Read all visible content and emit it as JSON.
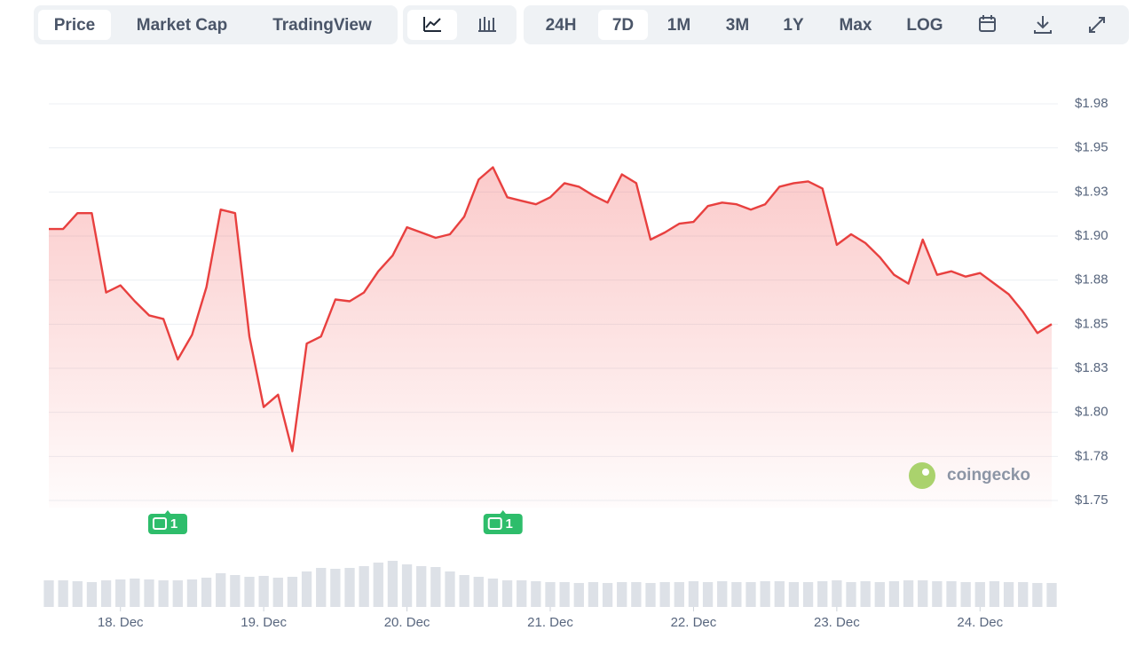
{
  "toolbar": {
    "views": [
      "Price",
      "Market Cap",
      "TradingView"
    ],
    "active_view": 0,
    "ranges": [
      "24H",
      "7D",
      "1M",
      "3M",
      "1Y",
      "Max",
      "LOG"
    ],
    "active_range": 1
  },
  "chart_data": {
    "type": "line",
    "color": "#e8403f",
    "grid": true,
    "watermark": "coingecko",
    "x": [
      17.5,
      17.6,
      17.7,
      17.8,
      17.9,
      18.0,
      18.1,
      18.2,
      18.3,
      18.4,
      18.5,
      18.6,
      18.7,
      18.8,
      18.9,
      19.0,
      19.1,
      19.2,
      19.3,
      19.4,
      19.5,
      19.6,
      19.7,
      19.8,
      19.9,
      20.0,
      20.1,
      20.2,
      20.3,
      20.4,
      20.5,
      20.6,
      20.7,
      20.8,
      20.9,
      21.0,
      21.1,
      21.2,
      21.3,
      21.4,
      21.5,
      21.6,
      21.7,
      21.8,
      21.9,
      22.0,
      22.1,
      22.2,
      22.3,
      22.4,
      22.5,
      22.6,
      22.7,
      22.8,
      22.9,
      23.0,
      23.1,
      23.2,
      23.3,
      23.4,
      23.5,
      23.6,
      23.7,
      23.8,
      23.9,
      24.0,
      24.1,
      24.2,
      24.3,
      24.4,
      24.5
    ],
    "values": [
      1.904,
      1.904,
      1.913,
      1.913,
      1.868,
      1.872,
      1.863,
      1.855,
      1.853,
      1.83,
      1.844,
      1.871,
      1.915,
      1.913,
      1.843,
      1.803,
      1.81,
      1.778,
      1.839,
      1.843,
      1.864,
      1.863,
      1.868,
      1.88,
      1.889,
      1.905,
      1.902,
      1.899,
      1.901,
      1.911,
      1.932,
      1.939,
      1.922,
      1.92,
      1.918,
      1.922,
      1.93,
      1.928,
      1.923,
      1.919,
      1.935,
      1.93,
      1.898,
      1.902,
      1.907,
      1.908,
      1.917,
      1.919,
      1.918,
      1.915,
      1.918,
      1.928,
      1.93,
      1.931,
      1.927,
      1.895,
      1.901,
      1.896,
      1.888,
      1.878,
      1.873,
      1.898,
      1.878,
      1.88,
      1.877,
      1.879,
      1.873,
      1.867,
      1.857,
      1.845,
      1.85
    ],
    "volume": [
      30,
      30,
      29,
      28,
      30,
      31,
      32,
      31,
      30,
      30,
      31,
      33,
      38,
      36,
      34,
      35,
      33,
      34,
      40,
      44,
      43,
      44,
      46,
      50,
      52,
      48,
      46,
      45,
      40,
      36,
      34,
      32,
      30,
      30,
      29,
      28,
      28,
      27,
      28,
      27,
      28,
      28,
      27,
      28,
      28,
      29,
      28,
      29,
      28,
      28,
      29,
      29,
      28,
      28,
      29,
      30,
      28,
      29,
      28,
      29,
      30,
      30,
      29,
      29,
      28,
      28,
      29,
      28,
      28,
      27,
      27
    ],
    "volume_lim": [
      0,
      60
    ],
    "xlim": [
      17.5,
      24.5
    ],
    "xticks": [
      {
        "value": 18,
        "label": "18. Dec"
      },
      {
        "value": 19,
        "label": "19. Dec"
      },
      {
        "value": 20,
        "label": "20. Dec"
      },
      {
        "value": 21,
        "label": "21. Dec"
      },
      {
        "value": 22,
        "label": "22. Dec"
      },
      {
        "value": 23,
        "label": "23. Dec"
      },
      {
        "value": 24,
        "label": "24. Dec"
      }
    ],
    "ylim": [
      1.75,
      1.975
    ],
    "yticks": [
      {
        "value": 1.975,
        "label": "$1.98"
      },
      {
        "value": 1.95,
        "label": "$1.95"
      },
      {
        "value": 1.925,
        "label": "$1.93"
      },
      {
        "value": 1.9,
        "label": "$1.90"
      },
      {
        "value": 1.875,
        "label": "$1.88"
      },
      {
        "value": 1.85,
        "label": "$1.85"
      },
      {
        "value": 1.825,
        "label": "$1.83"
      },
      {
        "value": 1.8,
        "label": "$1.80"
      },
      {
        "value": 1.775,
        "label": "$1.78"
      },
      {
        "value": 1.75,
        "label": "$1.75"
      }
    ],
    "annotations": [
      {
        "x": 18.33,
        "label": "1"
      },
      {
        "x": 20.67,
        "label": "1"
      }
    ]
  }
}
